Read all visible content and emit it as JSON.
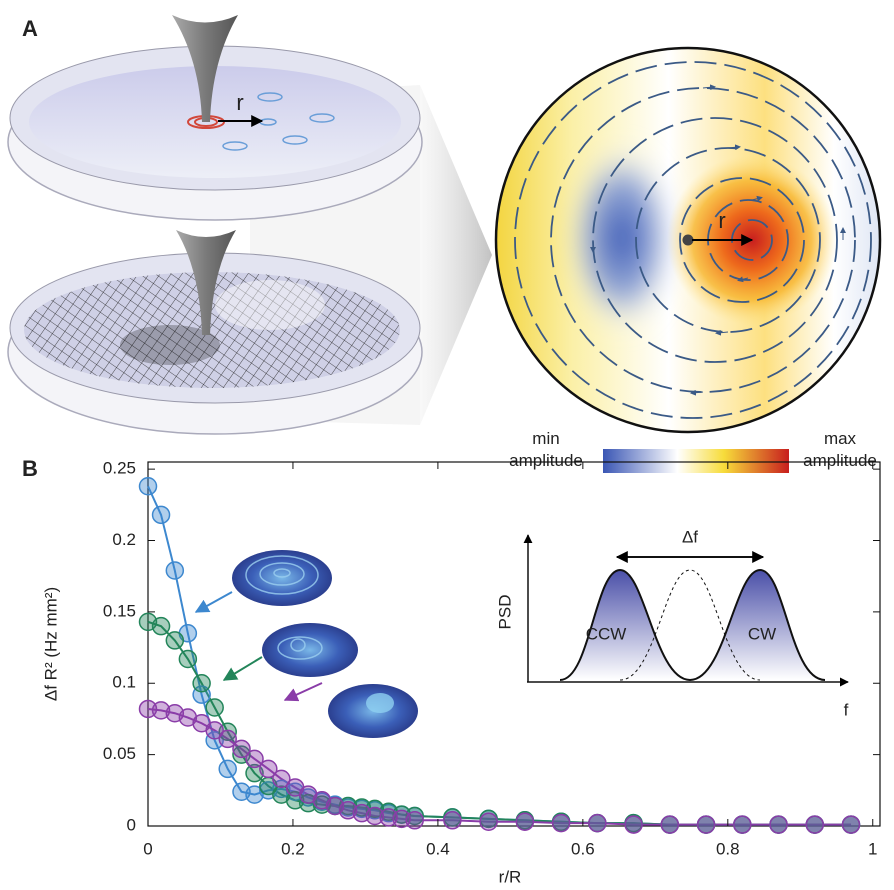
{
  "panel_labels": {
    "a": "A",
    "b": "B"
  },
  "panel_a": {
    "tip_label": "r",
    "field_label": "r",
    "colorbar": {
      "min_label": "min amplitude",
      "max_label": "max amplitude"
    }
  },
  "chart_data": {
    "type": "line",
    "xlabel": "r/R",
    "ylabel": "Δf R² (Hz mm²)",
    "x": [
      0,
      0.018,
      0.037,
      0.055,
      0.074,
      0.092,
      0.11,
      0.129,
      0.147,
      0.166,
      0.184,
      0.203,
      0.221,
      0.24,
      0.258,
      0.276,
      0.295,
      0.313,
      0.332,
      0.35,
      0.368,
      0.42,
      0.47,
      0.52,
      0.57,
      0.62,
      0.67,
      0.72,
      0.77,
      0.82,
      0.87,
      0.92,
      0.97
    ],
    "series": [
      {
        "color": "#3d88cf",
        "values": [
          0.238,
          0.218,
          0.179,
          0.135,
          0.092,
          0.06,
          0.04,
          0.024,
          0.022,
          0.025,
          0.026,
          0.024,
          0.02,
          0.017,
          0.015,
          0.013,
          0.012,
          0.011,
          0.009,
          0.008,
          0.007,
          0.006,
          0.005,
          0.004,
          0.003,
          0.002,
          0.002,
          0.001,
          0.001,
          0.001,
          0.001,
          0.001,
          0.001
        ]
      },
      {
        "color": "#23855a",
        "values": [
          0.143,
          0.14,
          0.13,
          0.117,
          0.1,
          0.083,
          0.066,
          0.05,
          0.037,
          0.028,
          0.022,
          0.018,
          0.016,
          0.015,
          0.014,
          0.014,
          0.013,
          0.012,
          0.01,
          0.008,
          0.007,
          0.006,
          0.005,
          0.004,
          0.003,
          0.002,
          0.002,
          0.001,
          0.001,
          0.001,
          0.001,
          0.001,
          0.001
        ]
      },
      {
        "color": "#8a3da8",
        "values": [
          0.082,
          0.081,
          0.079,
          0.076,
          0.072,
          0.067,
          0.061,
          0.054,
          0.047,
          0.04,
          0.033,
          0.027,
          0.022,
          0.018,
          0.014,
          0.011,
          0.009,
          0.007,
          0.006,
          0.005,
          0.004,
          0.004,
          0.003,
          0.003,
          0.002,
          0.002,
          0.001,
          0.001,
          0.001,
          0.001,
          0.001,
          0.001,
          0.001
        ]
      }
    ],
    "xlim": [
      0,
      1.01
    ],
    "ylim": [
      0,
      0.255
    ],
    "xticks": [
      0,
      0.2,
      0.4,
      0.6,
      0.8,
      1
    ],
    "yticks": [
      0,
      0.05,
      0.1,
      0.15,
      0.2,
      0.25
    ],
    "markers": true,
    "inset": {
      "ylabel": "PSD",
      "xlabel": "f",
      "split_label": "Δf",
      "left_peak": "CCW",
      "right_peak": "CW"
    }
  }
}
